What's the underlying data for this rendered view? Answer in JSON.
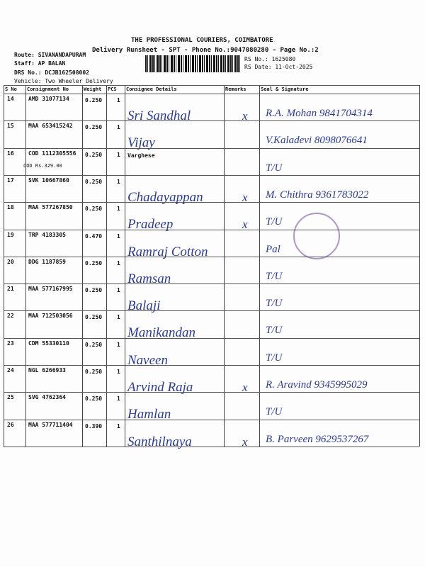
{
  "header": {
    "title": "THE PROFESSIONAL COURIERS, COIMBATORE",
    "subtitle": "Delivery Runsheet - SPT - Phone No.:9047080280 - Page No.:2",
    "route": "Route: SIVANANDAPURAM",
    "staff": "Staff: AP BALAN",
    "drs_no": "DRS No.: DCJB162508002",
    "vehicle": "Vehicle: Two Wheeler Delivery",
    "rs_no": "RS No.: 1625080",
    "rs_date": "RS Date: 11-Oct-2025"
  },
  "table": {
    "columns": [
      "S No",
      "Consignment No",
      "Weight",
      "PCS",
      "Consignee Details",
      "Remarks",
      "Seal & Signature"
    ],
    "rows": [
      {
        "sno": "14",
        "consignment": "AMD 31077134",
        "weight": "0.250",
        "pcs": "1",
        "handwriting": {
          "consignee": "Sri Sandhal",
          "remark": "x",
          "seal": "R.A. Mohan 9841704314"
        }
      },
      {
        "sno": "15",
        "consignment": "MAA 653415242",
        "weight": "0.250",
        "pcs": "1",
        "handwriting": {
          "consignee": "Vijay",
          "seal": "V.Kaladevi 8098076641"
        }
      },
      {
        "sno": "16",
        "consignment": "COD 1112305556",
        "weight": "0.250",
        "pcs": "1",
        "cod": "COD Rs.329.00",
        "consignee": "Varghese",
        "handwriting": {
          "seal": "T/U"
        }
      },
      {
        "sno": "17",
        "consignment": "SVK 10667860",
        "weight": "0.250",
        "pcs": "1",
        "handwriting": {
          "consignee": "Chadayappan",
          "remark": "x",
          "seal": "M. Chithra 9361783022"
        }
      },
      {
        "sno": "18",
        "consignment": "MAA 577267850",
        "weight": "0.250",
        "pcs": "1",
        "handwriting": {
          "consignee": "Pradeep",
          "remark": "x",
          "seal": "T/U"
        }
      },
      {
        "sno": "19",
        "consignment": "TRP 4183305",
        "weight": "0.470",
        "pcs": "1",
        "handwriting": {
          "consignee": "Ramraj Cotton",
          "seal": "Pal"
        }
      },
      {
        "sno": "20",
        "consignment": "DDG 1187859",
        "weight": "0.250",
        "pcs": "1",
        "handwriting": {
          "consignee": "Ramsan",
          "seal": "T/U"
        }
      },
      {
        "sno": "21",
        "consignment": "MAA 577167995",
        "weight": "0.250",
        "pcs": "1",
        "handwriting": {
          "consignee": "Balaji",
          "seal": "T/U"
        }
      },
      {
        "sno": "22",
        "consignment": "MAA 712503056",
        "weight": "0.250",
        "pcs": "1",
        "handwriting": {
          "consignee": "Manikandan",
          "seal": "T/U"
        }
      },
      {
        "sno": "23",
        "consignment": "CDM 55330110",
        "weight": "0.250",
        "pcs": "1",
        "handwriting": {
          "consignee": "Naveen",
          "seal": "T/U"
        }
      },
      {
        "sno": "24",
        "consignment": "NGL 6266933",
        "weight": "0.250",
        "pcs": "1",
        "handwriting": {
          "consignee": "Arvind Raja",
          "remark": "x",
          "seal": "R. Aravind 9345995029"
        }
      },
      {
        "sno": "25",
        "consignment": "SVG 4762364",
        "weight": "0.250",
        "pcs": "1",
        "handwriting": {
          "consignee": "Hamlan",
          "seal": "T/U"
        }
      },
      {
        "sno": "26",
        "consignment": "MAA 577711404",
        "weight": "0.390",
        "pcs": "1",
        "handwriting": {
          "consignee": "Santhilnaya",
          "remark": "x",
          "seal": "B. Parveen 9629537267"
        }
      }
    ]
  }
}
